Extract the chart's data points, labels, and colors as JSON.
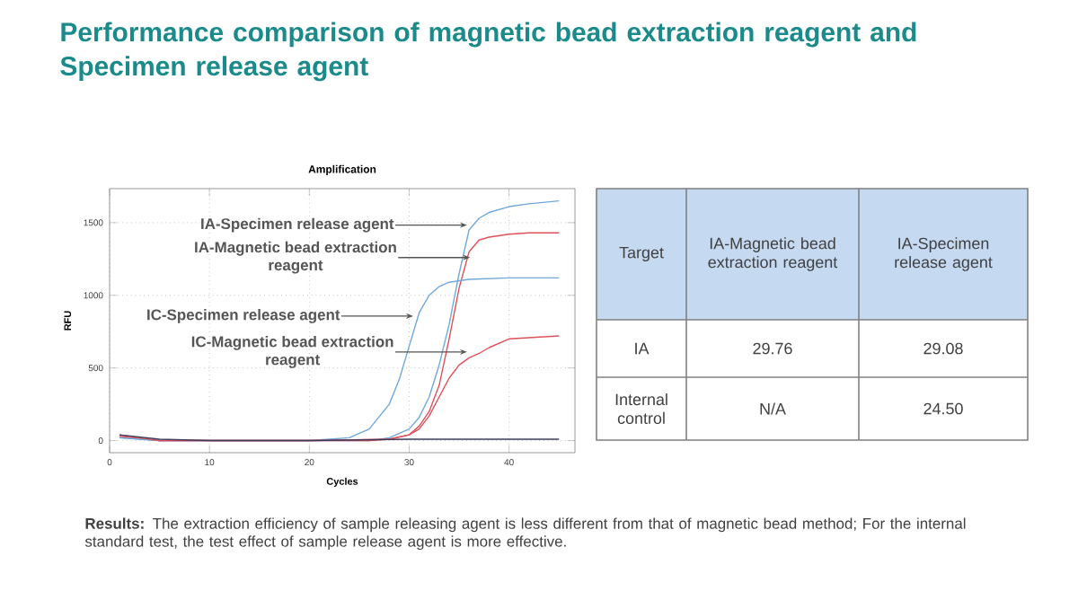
{
  "chart_data": [
    {
      "type": "line",
      "title": "Performance comparison of magnetic bead extraction reagent and Specimen release agent",
      "subtitle": "Amplification",
      "xlabel": "Cycles",
      "ylabel": "RFU",
      "xlim": [
        0,
        46.6
      ],
      "ylim": [
        -83,
        1734
      ],
      "xticks": [
        0,
        10,
        20,
        30,
        40
      ],
      "yticks": [
        0,
        500,
        1000,
        1500
      ],
      "grid": true,
      "marker": "none",
      "series": [
        {
          "color": "#6fa8dc",
          "x": [
            1,
            5,
            10,
            20,
            26,
            28,
            30,
            31,
            32,
            33,
            34,
            35,
            36,
            37,
            38,
            40,
            42,
            45
          ],
          "values": [
            20,
            0,
            0,
            0,
            0,
            20,
            80,
            160,
            300,
            520,
            800,
            1150,
            1450,
            1530,
            1570,
            1610,
            1630,
            1650
          ]
        },
        {
          "color": "#e0505a",
          "x": [
            1,
            5,
            10,
            20,
            26,
            28,
            30,
            31,
            32,
            33,
            34,
            35,
            36,
            37,
            38,
            40,
            42,
            45
          ],
          "values": [
            30,
            0,
            0,
            0,
            0,
            10,
            40,
            100,
            200,
            380,
            700,
            1050,
            1300,
            1380,
            1400,
            1420,
            1430,
            1430
          ]
        },
        {
          "color": "#6fa8dc",
          "x": [
            1,
            5,
            10,
            20,
            24,
            26,
            28,
            29,
            30,
            31,
            32,
            33,
            34,
            36,
            40,
            45
          ],
          "values": [
            20,
            0,
            0,
            0,
            20,
            80,
            250,
            420,
            650,
            880,
            1000,
            1060,
            1090,
            1110,
            1120,
            1120
          ]
        },
        {
          "color": "#e0505a",
          "x": [
            1,
            5,
            10,
            20,
            28,
            30,
            31,
            32,
            33,
            34,
            35,
            36,
            37,
            38,
            40,
            45
          ],
          "values": [
            40,
            0,
            0,
            0,
            10,
            40,
            80,
            170,
            300,
            430,
            520,
            570,
            600,
            640,
            700,
            720
          ]
        },
        {
          "color": "#3c3c5a",
          "x": [
            1,
            5,
            10,
            20,
            30,
            40,
            45
          ],
          "values": [
            40,
            10,
            0,
            0,
            10,
            10,
            10
          ]
        }
      ],
      "annotations": [
        {
          "text": "IA-Specimen release agent",
          "x": 35.8,
          "y": 1483
        },
        {
          "text": "IA-Magnetic bead extraction reagent",
          "x": 36.1,
          "y": 1260
        },
        {
          "text": "IC-Specimen release agent",
          "x": 30.4,
          "y": 857
        },
        {
          "text": "IC-Magnetic bead extraction reagent",
          "x": 35.8,
          "y": 610
        },
        "**Results:** The extraction efficiency of sample releasing agent is less different from that of magnetic bead method; For the internal standard test, the test effect of sample release agent is more effective."
      ]
    },
    {
      "type": "other",
      "categories": [
        "Target",
        "IA-Magnetic bead extraction reagent",
        "IA-Specimen release agent"
      ],
      "y_categories": [
        "IA",
        "Internal control"
      ],
      "cell_labels": [
        [
          "29.76",
          "29.08"
        ],
        [
          "N/A",
          "24.50"
        ]
      ]
    }
  ]
}
